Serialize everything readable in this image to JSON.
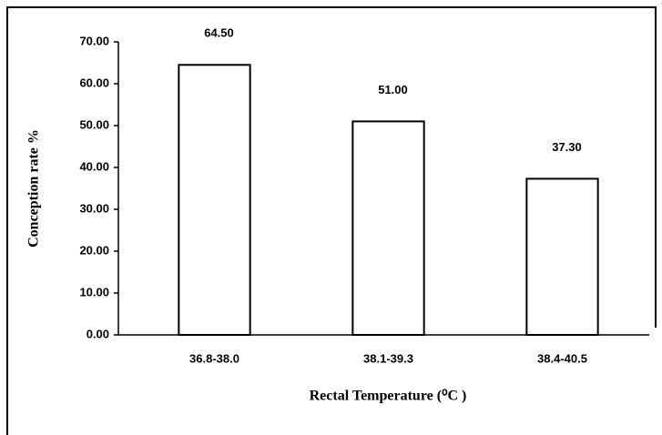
{
  "chart_data": {
    "type": "bar",
    "x_label": "Rectal Temperature (⁰C )",
    "y_label": "Conception rate %",
    "categories": [
      "36.8-38.0",
      "38.1-39.3",
      "38.4-40.5"
    ],
    "values": [
      64.5,
      51.0,
      37.3
    ],
    "value_labels": [
      "64.50",
      "51.00",
      "37.30"
    ],
    "color": "#ffffff",
    "ylim": [
      0,
      70
    ],
    "yticks": [
      {
        "value": 0,
        "label": "0.00"
      },
      {
        "value": 10,
        "label": "10.00"
      },
      {
        "value": 20,
        "label": "20.00"
      },
      {
        "value": 30,
        "label": "30.00"
      },
      {
        "value": 40,
        "label": "40.00"
      },
      {
        "value": 50,
        "label": "50.00"
      },
      {
        "value": 60,
        "label": "60.00"
      },
      {
        "value": 70,
        "label": "70.00"
      }
    ],
    "grid": false
  }
}
